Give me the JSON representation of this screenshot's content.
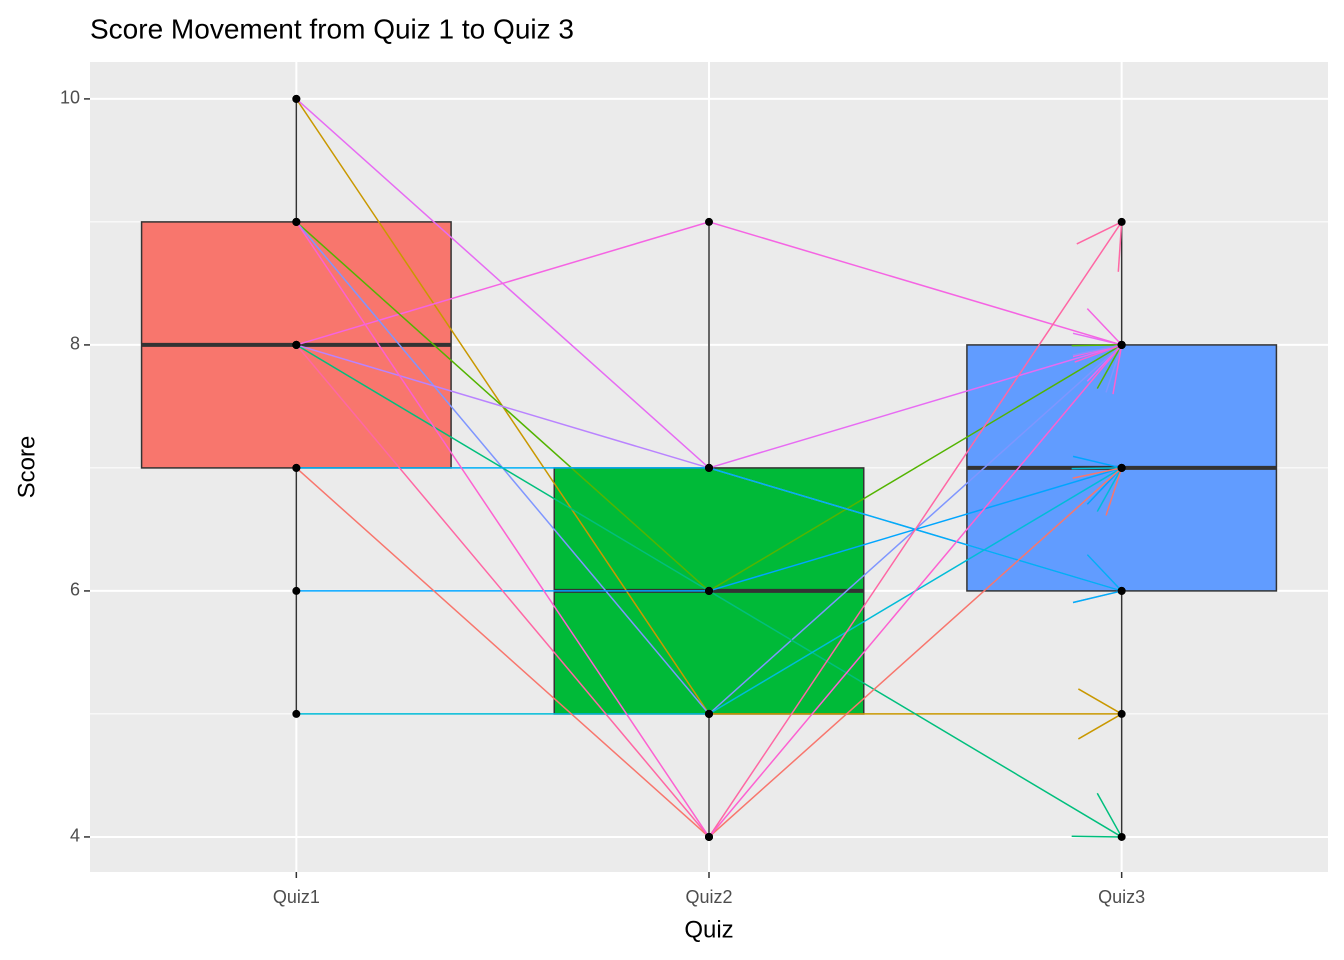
{
  "chart_data": {
    "type": "box-paths",
    "title": "Score Movement from Quiz 1 to Quiz 3",
    "x_label": "Quiz",
    "y_label": "Score",
    "categories": [
      "Quiz1",
      "Quiz2",
      "Quiz3"
    ],
    "ylim": [
      3.715,
      10.3
    ],
    "yticks": [
      4,
      6,
      8,
      10
    ],
    "y_minor_grid": [
      5,
      7,
      9
    ],
    "grid": true,
    "boxes": [
      {
        "lower": 5,
        "q1": 7,
        "median": 8,
        "q3": 9,
        "upper": 10,
        "fill": "#F8766D"
      },
      {
        "lower": 4,
        "q1": 5,
        "median": 6,
        "q3": 7,
        "upper": 9,
        "fill": "#00BA38"
      },
      {
        "lower": 4,
        "q1": 6,
        "median": 7,
        "q3": 8,
        "upper": 9,
        "fill": "#619CFF"
      }
    ],
    "series": [
      {
        "color": "#C99800",
        "values": [
          10,
          5,
          5
        ]
      },
      {
        "color": "#E76BF3",
        "values": [
          10,
          7,
          8
        ]
      },
      {
        "color": "#F564E3",
        "values": [
          8,
          9,
          8
        ]
      },
      {
        "color": "#53B400",
        "values": [
          9,
          6,
          8
        ]
      },
      {
        "color": "#7F96FF",
        "values": [
          9,
          5,
          8
        ]
      },
      {
        "color": "#00BF7D",
        "values": [
          8,
          6,
          4
        ]
      },
      {
        "color": "#B983FF",
        "values": [
          8,
          7,
          6
        ]
      },
      {
        "color": "#00B0F6",
        "values": [
          7,
          7,
          6
        ]
      },
      {
        "color": "#00A5FF",
        "values": [
          6,
          6,
          7
        ]
      },
      {
        "color": "#00BCD8",
        "values": [
          5,
          5,
          7
        ]
      },
      {
        "color": "#F8766D",
        "values": [
          7,
          4,
          7
        ]
      },
      {
        "color": "#FF67A4",
        "values": [
          8,
          4,
          9
        ]
      },
      {
        "color": "#FD61D1",
        "values": [
          9,
          4,
          8
        ]
      }
    ]
  }
}
